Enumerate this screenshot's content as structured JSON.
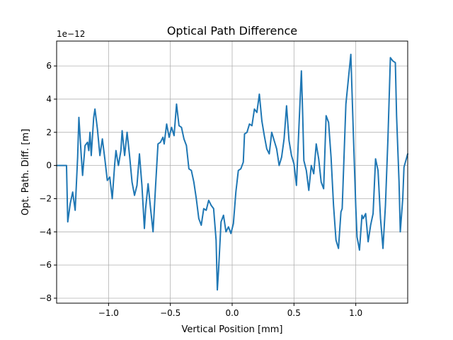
{
  "chart_data": {
    "type": "line",
    "title": "Optical Path Difference",
    "xlabel": "Vertical Position [mm]",
    "ylabel": "Opt. Path. Diff. [m]",
    "y_offset_text": "1e−12",
    "xlim": [
      -1.42,
      1.42
    ],
    "ylim": [
      -8.3,
      7.5
    ],
    "y_scale_factor": 1e-12,
    "grid": true,
    "line_color": "#1f77b4",
    "x_ticks": [
      {
        "value": -1.0,
        "label": "−1.0"
      },
      {
        "value": -0.5,
        "label": "−0.5"
      },
      {
        "value": 0.0,
        "label": "0.0"
      },
      {
        "value": 0.5,
        "label": "0.5"
      },
      {
        "value": 1.0,
        "label": "1.0"
      }
    ],
    "y_ticks": [
      {
        "value": -8,
        "label": "−8"
      },
      {
        "value": -6,
        "label": "−6"
      },
      {
        "value": -4,
        "label": "−4"
      },
      {
        "value": -2,
        "label": "−2"
      },
      {
        "value": 0,
        "label": "0"
      },
      {
        "value": 2,
        "label": "2"
      },
      {
        "value": 4,
        "label": "4"
      },
      {
        "value": 6,
        "label": "6"
      }
    ],
    "series": [
      {
        "points": [
          [
            -1.42,
            0.0
          ],
          [
            -1.34,
            0.0
          ],
          [
            -1.33,
            -3.4
          ],
          [
            -1.31,
            -2.3
          ],
          [
            -1.29,
            -1.6
          ],
          [
            -1.27,
            -2.7
          ],
          [
            -1.25,
            0.5
          ],
          [
            -1.24,
            2.9
          ],
          [
            -1.22,
            0.5
          ],
          [
            -1.21,
            -0.6
          ],
          [
            -1.19,
            1.2
          ],
          [
            -1.17,
            1.4
          ],
          [
            -1.16,
            0.9
          ],
          [
            -1.15,
            2.0
          ],
          [
            -1.14,
            0.6
          ],
          [
            -1.12,
            2.9
          ],
          [
            -1.11,
            3.4
          ],
          [
            -1.09,
            2.2
          ],
          [
            -1.07,
            0.6
          ],
          [
            -1.05,
            1.6
          ],
          [
            -1.03,
            0.4
          ],
          [
            -1.01,
            -0.9
          ],
          [
            -0.99,
            -0.7
          ],
          [
            -0.97,
            -2.0
          ],
          [
            -0.95,
            0.1
          ],
          [
            -0.94,
            0.9
          ],
          [
            -0.92,
            0.0
          ],
          [
            -0.9,
            0.9
          ],
          [
            -0.89,
            2.1
          ],
          [
            -0.87,
            0.6
          ],
          [
            -0.85,
            2.0
          ],
          [
            -0.83,
            0.6
          ],
          [
            -0.81,
            -1.0
          ],
          [
            -0.79,
            -1.8
          ],
          [
            -0.77,
            -1.2
          ],
          [
            -0.75,
            0.7
          ],
          [
            -0.73,
            -1.2
          ],
          [
            -0.71,
            -3.8
          ],
          [
            -0.7,
            -2.6
          ],
          [
            -0.68,
            -1.1
          ],
          [
            -0.66,
            -2.6
          ],
          [
            -0.64,
            -4.0
          ],
          [
            -0.62,
            -1.3
          ],
          [
            -0.6,
            1.3
          ],
          [
            -0.58,
            1.4
          ],
          [
            -0.56,
            1.7
          ],
          [
            -0.55,
            1.3
          ],
          [
            -0.53,
            2.5
          ],
          [
            -0.51,
            1.7
          ],
          [
            -0.49,
            2.3
          ],
          [
            -0.47,
            1.8
          ],
          [
            -0.45,
            3.7
          ],
          [
            -0.43,
            2.4
          ],
          [
            -0.41,
            2.3
          ],
          [
            -0.39,
            1.6
          ],
          [
            -0.37,
            1.2
          ],
          [
            -0.35,
            -0.2
          ],
          [
            -0.33,
            -0.3
          ],
          [
            -0.31,
            -1.0
          ],
          [
            -0.29,
            -2.0
          ],
          [
            -0.27,
            -3.2
          ],
          [
            -0.25,
            -3.6
          ],
          [
            -0.23,
            -2.6
          ],
          [
            -0.21,
            -2.7
          ],
          [
            -0.19,
            -2.1
          ],
          [
            -0.17,
            -2.4
          ],
          [
            -0.15,
            -2.6
          ],
          [
            -0.13,
            -4.5
          ],
          [
            -0.12,
            -7.5
          ],
          [
            -0.11,
            -6.3
          ],
          [
            -0.09,
            -3.4
          ],
          [
            -0.07,
            -3.0
          ],
          [
            -0.05,
            -4.0
          ],
          [
            -0.03,
            -3.7
          ],
          [
            -0.01,
            -4.1
          ],
          [
            0.01,
            -3.5
          ],
          [
            0.03,
            -1.6
          ],
          [
            0.05,
            -0.3
          ],
          [
            0.07,
            -0.2
          ],
          [
            0.09,
            0.2
          ],
          [
            0.1,
            1.9
          ],
          [
            0.12,
            2.0
          ],
          [
            0.14,
            2.5
          ],
          [
            0.16,
            2.4
          ],
          [
            0.18,
            3.4
          ],
          [
            0.2,
            3.2
          ],
          [
            0.22,
            4.3
          ],
          [
            0.24,
            2.7
          ],
          [
            0.26,
            1.8
          ],
          [
            0.28,
            1.0
          ],
          [
            0.3,
            0.7
          ],
          [
            0.32,
            2.0
          ],
          [
            0.34,
            1.5
          ],
          [
            0.36,
            1.0
          ],
          [
            0.38,
            0.0
          ],
          [
            0.4,
            0.5
          ],
          [
            0.42,
            1.6
          ],
          [
            0.44,
            3.6
          ],
          [
            0.46,
            1.5
          ],
          [
            0.48,
            0.6
          ],
          [
            0.5,
            0.1
          ],
          [
            0.52,
            -1.2
          ],
          [
            0.54,
            2.3
          ],
          [
            0.56,
            5.7
          ],
          [
            0.57,
            3.2
          ],
          [
            0.58,
            0.3
          ],
          [
            0.6,
            -0.3
          ],
          [
            0.62,
            -1.5
          ],
          [
            0.64,
            0.0
          ],
          [
            0.66,
            -0.5
          ],
          [
            0.68,
            1.3
          ],
          [
            0.7,
            0.4
          ],
          [
            0.72,
            -1.0
          ],
          [
            0.74,
            -1.4
          ],
          [
            0.76,
            3.0
          ],
          [
            0.78,
            2.6
          ],
          [
            0.8,
            0.5
          ],
          [
            0.82,
            -2.4
          ],
          [
            0.84,
            -4.5
          ],
          [
            0.86,
            -5.0
          ],
          [
            0.88,
            -2.8
          ],
          [
            0.89,
            -2.6
          ],
          [
            0.9,
            -0.5
          ],
          [
            0.92,
            3.7
          ],
          [
            0.94,
            5.2
          ],
          [
            0.96,
            6.7
          ],
          [
            0.98,
            2.0
          ],
          [
            1.0,
            -2.5
          ],
          [
            1.01,
            -4.3
          ],
          [
            1.03,
            -5.1
          ],
          [
            1.05,
            -3.0
          ],
          [
            1.06,
            -3.2
          ],
          [
            1.08,
            -2.9
          ],
          [
            1.1,
            -4.6
          ],
          [
            1.12,
            -3.6
          ],
          [
            1.14,
            -2.9
          ],
          [
            1.16,
            0.4
          ],
          [
            1.18,
            -0.3
          ],
          [
            1.2,
            -3.2
          ],
          [
            1.22,
            -5.0
          ],
          [
            1.24,
            -2.4
          ],
          [
            1.26,
            1.6
          ],
          [
            1.28,
            6.5
          ],
          [
            1.3,
            6.3
          ],
          [
            1.32,
            6.2
          ],
          [
            1.33,
            3.0
          ],
          [
            1.35,
            -1.0
          ],
          [
            1.36,
            -4.0
          ],
          [
            1.38,
            -2.0
          ],
          [
            1.39,
            -0.1
          ],
          [
            1.42,
            0.7
          ]
        ]
      }
    ]
  }
}
